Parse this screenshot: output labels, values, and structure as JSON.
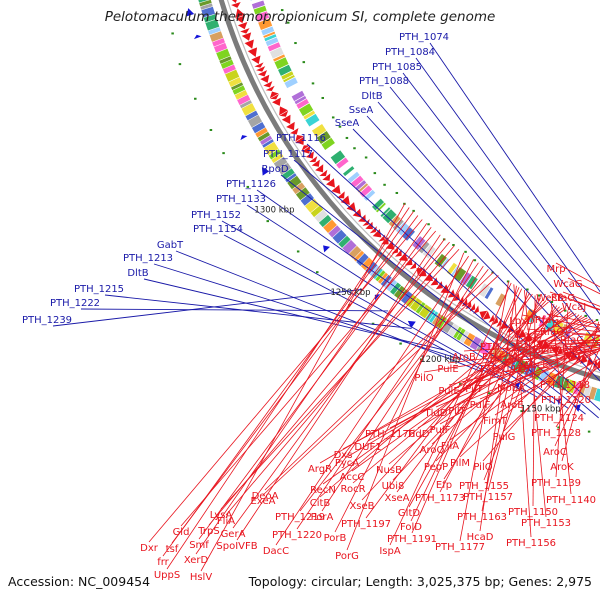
{
  "title": "Pelotomaculum thermopropionicum SI, complete genome",
  "footer": {
    "accession": "Accession: NC_009454",
    "summary": "Topology: circular; Length: 3,025,375 bp; Genes: 2,975"
  },
  "colors": {
    "forward_label": "#1a1aa8",
    "reverse_label": "#e8141e",
    "backbone": "#7b7b7b",
    "forward_arrow": "#1515d8",
    "reverse_arrow": "#e8151d",
    "gc_dot": "#2a8a1a"
  },
  "kbp_ticks": [
    "1100 kbp",
    "1150 kbp",
    "1200 kbp",
    "1250 kbp",
    "1300 kbp"
  ],
  "forward_labels": [
    "PTH_1074",
    "PTH_1084",
    "PTH_1085",
    "PTH_1088",
    "DltB",
    "SseA",
    "SseA",
    "PTH_1116",
    "PTH_1117",
    "RpoD",
    "PTH_1126",
    "PTH_1133",
    "PTH_1152",
    "PTH_1154",
    "GabT",
    "PTH_1213",
    "DltB",
    "PTH_1215",
    "PTH_1222",
    "PTH_1239"
  ],
  "reverse_labels_right": [
    "Mrp",
    "WcaG",
    "WecB",
    "RfaG",
    "WcaJ",
    "LpxD",
    "RfaG",
    "WecE",
    "RfaG",
    "RfaG",
    "MviM",
    "RfaG",
    "PTH_1121",
    "PTH_1123",
    "WecE",
    "AroB",
    "PulE",
    "PTH_1125",
    "PilO",
    "PulE",
    "PilT",
    "MobA",
    "PTH_1118",
    "PTH_1120",
    "PulF",
    "AroE",
    "PilT",
    "FimT",
    "PTH_1124",
    "PTH_1128",
    "TldD",
    "PulF",
    "PulG",
    "AroC",
    "FliA",
    "PilM",
    "PilO",
    "AroK",
    "TldD",
    "PTH_1176",
    "DUF1",
    "Dxs",
    "PycA",
    "AroQ",
    "PepP",
    "ArgR",
    "AccC",
    "NusB",
    "PTH_1139",
    "RecN",
    "RocR",
    "Ubi8",
    "Efp",
    "PTH_1155",
    "PTH_1140",
    "CitB",
    "XseB",
    "XseA",
    "PTH_1173",
    "PTH_1157",
    "PTH_1150",
    "PTH_1197",
    "GltD",
    "PTH_1163",
    "PTH_1153",
    "FolD",
    "PTH_1191",
    "HcaD",
    "PTH_1156",
    "IspA",
    "PTH_1177"
  ],
  "reverse_labels_left": [
    "ExeA",
    "DeoA",
    "PTH_1219",
    "PorA",
    "PTH_1220",
    "PorB",
    "DacC",
    "PorG",
    "LysA",
    "FliA",
    "TrpS",
    "GerA",
    "SpoIVFB",
    "Gld",
    "Smf",
    "XerD",
    "Dxr",
    "tsf",
    "frr",
    "UppS",
    "HslV"
  ]
}
